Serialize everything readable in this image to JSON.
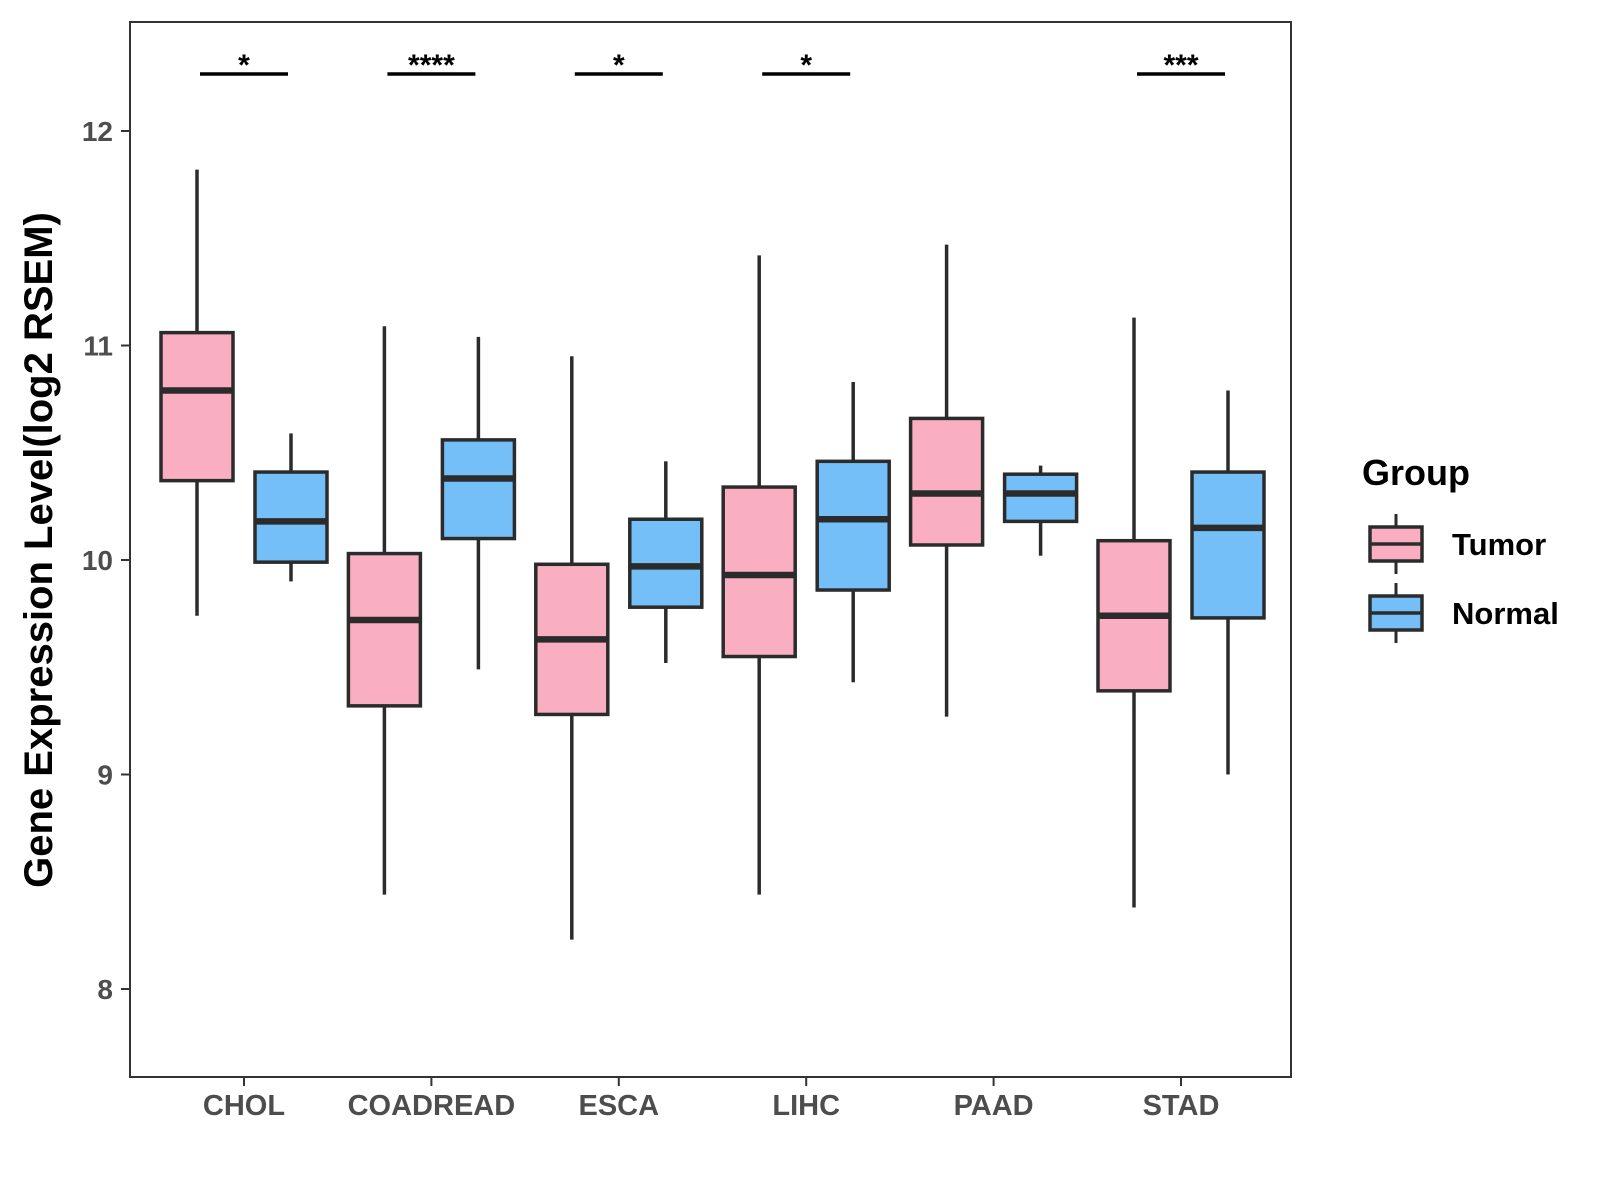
{
  "chart_data": {
    "type": "boxplot",
    "title": "",
    "xlabel": "",
    "ylabel": "Gene Expression Level(log2 RSEM)",
    "ylim": [
      7.55,
      12.45
    ],
    "yticks": [
      8,
      9,
      10,
      11,
      12
    ],
    "categories": [
      "CHOL",
      "COADREAD",
      "ESCA",
      "LIHC",
      "PAAD",
      "STAD"
    ],
    "legend": {
      "title": "Group",
      "position": "right",
      "items": [
        {
          "name": "Tumor",
          "color": "#F9AFC1"
        },
        {
          "name": "Normal",
          "color": "#74BFF7"
        }
      ]
    },
    "series": [
      {
        "name": "Tumor",
        "color": "#F9AFC1",
        "boxes": [
          {
            "min": 9.74,
            "q1": 10.37,
            "median": 10.79,
            "q3": 11.06,
            "max": 11.82
          },
          {
            "min": 8.44,
            "q1": 9.32,
            "median": 9.72,
            "q3": 10.03,
            "max": 11.09
          },
          {
            "min": 8.23,
            "q1": 9.28,
            "median": 9.63,
            "q3": 9.98,
            "max": 10.95
          },
          {
            "min": 8.44,
            "q1": 9.55,
            "median": 9.93,
            "q3": 10.34,
            "max": 11.42
          },
          {
            "min": 9.27,
            "q1": 10.07,
            "median": 10.31,
            "q3": 10.66,
            "max": 11.47
          },
          {
            "min": 8.38,
            "q1": 9.39,
            "median": 9.74,
            "q3": 10.09,
            "max": 11.13
          }
        ]
      },
      {
        "name": "Normal",
        "color": "#74BFF7",
        "boxes": [
          {
            "min": 9.9,
            "q1": 9.99,
            "median": 10.18,
            "q3": 10.41,
            "max": 10.59
          },
          {
            "min": 9.49,
            "q1": 10.1,
            "median": 10.38,
            "q3": 10.56,
            "max": 11.04
          },
          {
            "min": 9.52,
            "q1": 9.78,
            "median": 9.97,
            "q3": 10.19,
            "max": 10.46
          },
          {
            "min": 9.43,
            "q1": 9.86,
            "median": 10.19,
            "q3": 10.46,
            "max": 10.83
          },
          {
            "min": 10.02,
            "q1": 10.18,
            "median": 10.31,
            "q3": 10.4,
            "max": 10.44
          },
          {
            "min": 9.0,
            "q1": 9.73,
            "median": 10.15,
            "q3": 10.41,
            "max": 10.79
          }
        ]
      }
    ],
    "significance": [
      "*",
      "****",
      "*",
      "*",
      "",
      "***"
    ]
  }
}
